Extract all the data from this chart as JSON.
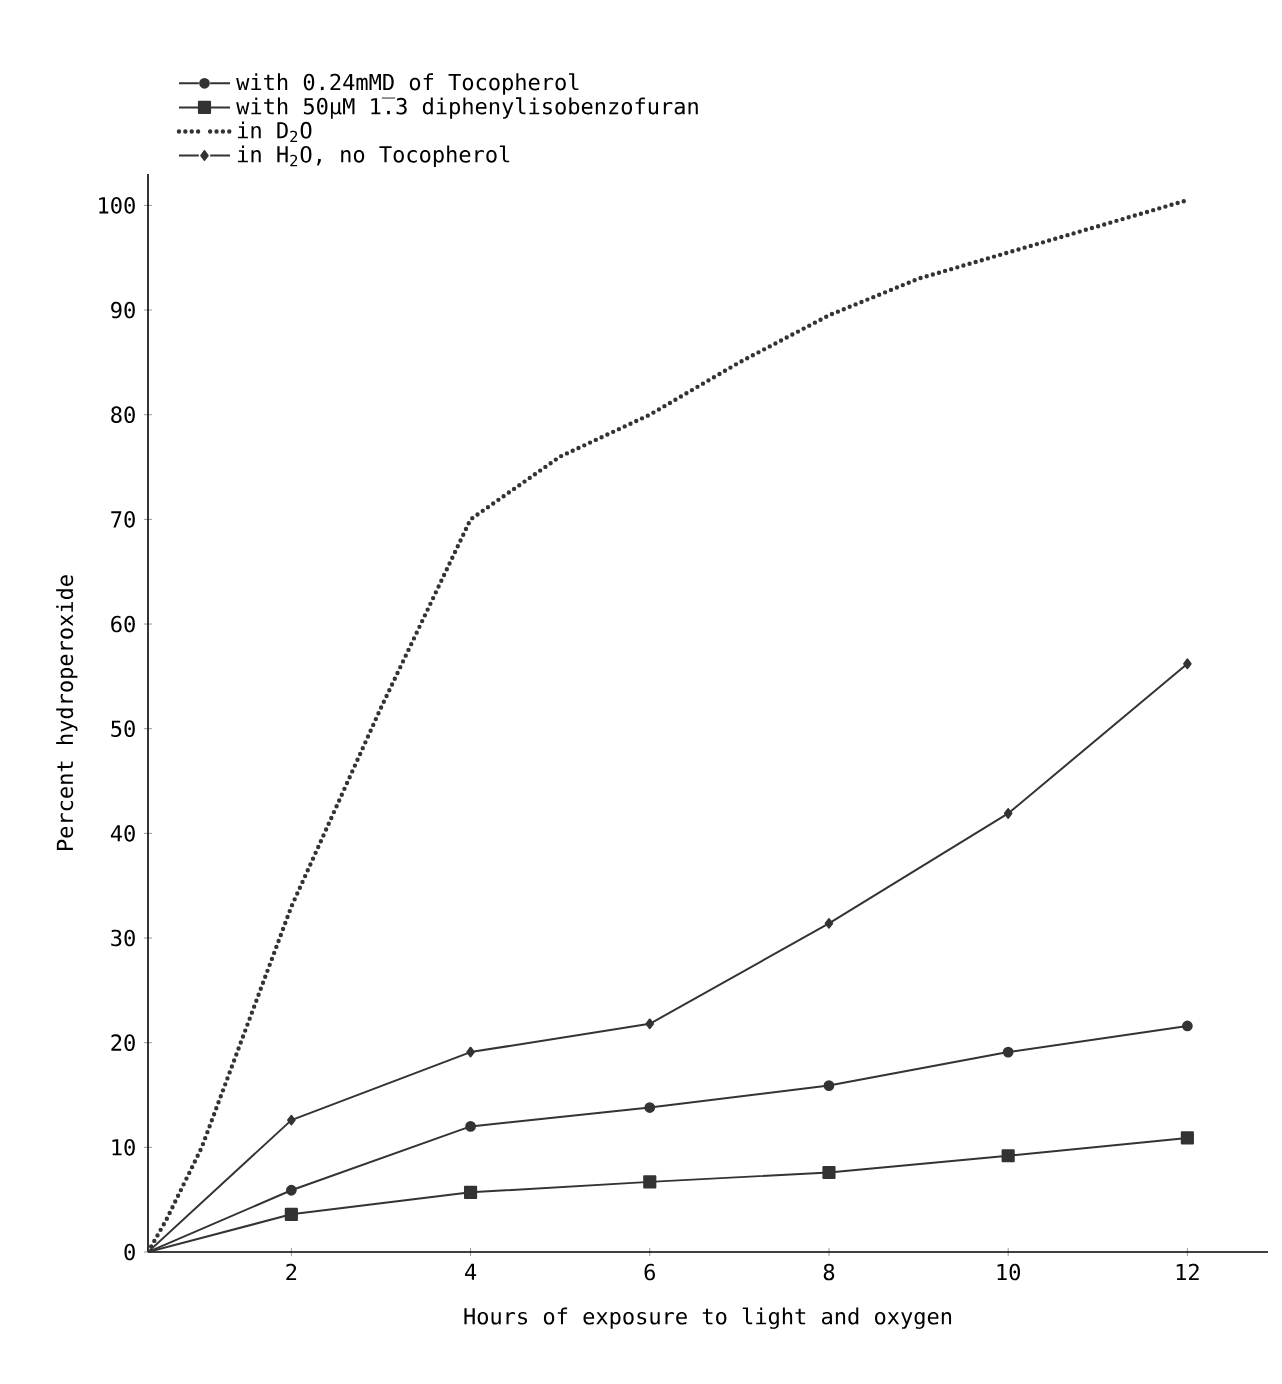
{
  "chart_data": {
    "type": "line",
    "xlabel": "Hours of exposure to light and oxygen",
    "ylabel": "Percent hydroperoxide",
    "xlim": [
      0.4,
      12.9
    ],
    "ylim": [
      0,
      103
    ],
    "xticks": [
      2,
      4,
      6,
      8,
      10,
      12
    ],
    "yticks": [
      0,
      10,
      20,
      30,
      40,
      50,
      60,
      70,
      80,
      90,
      100
    ],
    "legend": "top left",
    "grid": false,
    "series": [
      {
        "name": "with 0.24mMD of Tocopherol",
        "color": "#333333",
        "marker": "circle",
        "line_style": "solid",
        "x": [
          0.4,
          2,
          4,
          6,
          8,
          10,
          12
        ],
        "values": [
          0,
          5.9,
          12.0,
          13.8,
          15.9,
          19.1,
          21.6
        ]
      },
      {
        "name": "with 50µM 1̅.3 diphenylisobenzofuran",
        "color": "#333333",
        "marker": "square",
        "line_style": "solid",
        "x": [
          0.4,
          2,
          4,
          6,
          8,
          10,
          12
        ],
        "values": [
          0,
          3.6,
          5.7,
          6.7,
          7.6,
          9.2,
          10.9
        ]
      },
      {
        "name": "in D$_{2}$O",
        "color": "#333333",
        "marker": "none",
        "line_style": "dotted",
        "x": [
          0.4,
          0.6,
          1,
          2,
          3,
          4,
          4.5,
          5,
          6,
          7,
          8,
          9,
          10,
          11,
          12
        ],
        "values": [
          0,
          3,
          10,
          33,
          52,
          70,
          73,
          76,
          80,
          85,
          89.5,
          93,
          95.5,
          98,
          100.5
        ]
      },
      {
        "name": "in H$_{2}$O, no Tocopherol",
        "color": "#333333",
        "marker": "diamond",
        "line_style": "solid",
        "x": [
          0.4,
          2,
          4,
          6,
          8,
          10,
          12
        ],
        "values": [
          0,
          12.6,
          19.1,
          21.8,
          31.4,
          41.9,
          56.2
        ]
      }
    ]
  }
}
